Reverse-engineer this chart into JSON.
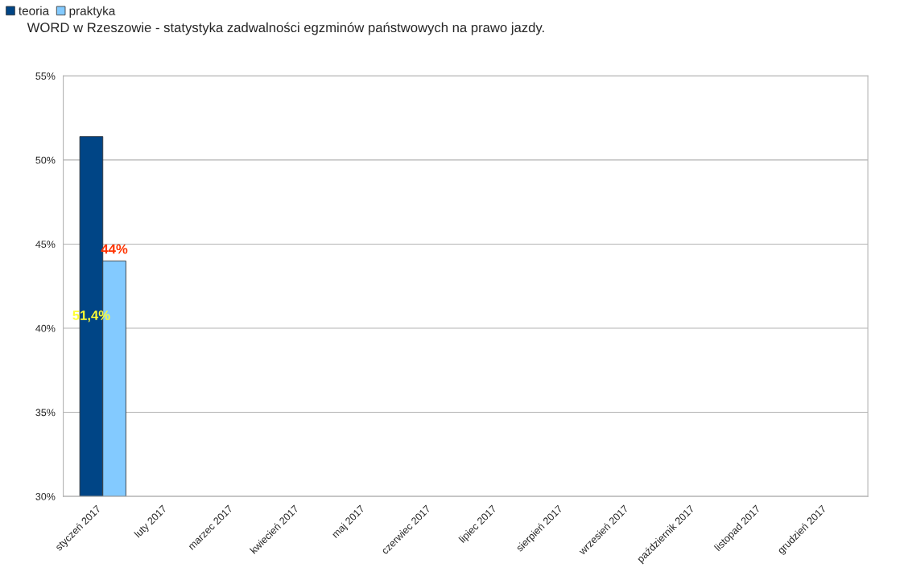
{
  "chart_data": {
    "type": "bar",
    "title": "WORD w Rzeszowie - statystyka zadwalności egzminów państwowych na prawo jazdy.",
    "categories": [
      "styczeń 2017",
      "luty 2017",
      "marzec 2017",
      "kwiecień 2017",
      "maj 2017",
      "czerwiec 2017",
      "lipiec 2017",
      "sierpień 2017",
      "wrzesień 2017",
      "październik 2017",
      "listopad 2017",
      "grudzień 2017"
    ],
    "series": [
      {
        "name": "teoria",
        "color": "#004586",
        "values": [
          51.4,
          null,
          null,
          null,
          null,
          null,
          null,
          null,
          null,
          null,
          null,
          null
        ],
        "value_labels": [
          "51,4%",
          null,
          null,
          null,
          null,
          null,
          null,
          null,
          null,
          null,
          null,
          null
        ]
      },
      {
        "name": "praktyka",
        "color": "#83caff",
        "values": [
          44,
          null,
          null,
          null,
          null,
          null,
          null,
          null,
          null,
          null,
          null,
          null
        ],
        "value_labels": [
          "44%",
          null,
          null,
          null,
          null,
          null,
          null,
          null,
          null,
          null,
          null,
          null
        ]
      }
    ],
    "ylim": [
      30,
      55
    ],
    "yticks": [
      {
        "value": 30,
        "label": "30%"
      },
      {
        "value": 35,
        "label": "35%"
      },
      {
        "value": 40,
        "label": "40%"
      },
      {
        "value": 45,
        "label": "45%"
      },
      {
        "value": 50,
        "label": "50%"
      },
      {
        "value": 55,
        "label": "55%"
      }
    ],
    "grid": "y",
    "legend": "top left"
  }
}
